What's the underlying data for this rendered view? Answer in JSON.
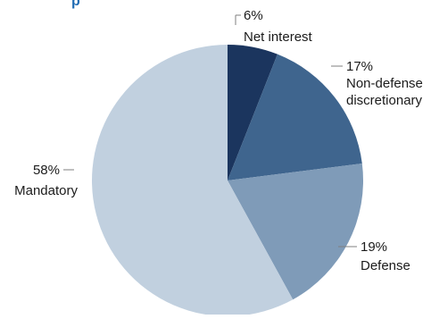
{
  "chart_data": {
    "type": "pie",
    "title": "p",
    "slices": [
      {
        "label": "Net interest",
        "value": 6,
        "value_label": "6%",
        "color": "#1b355e"
      },
      {
        "label": "Non-defense discretionary",
        "label_lines": [
          "Non-defense",
          "discretionary"
        ],
        "value": 17,
        "value_label": "17%",
        "color": "#3f658e"
      },
      {
        "label": "Defense",
        "value": 19,
        "value_label": "19%",
        "color": "#7f9bb8"
      },
      {
        "label": "Mandatory",
        "value": 58,
        "value_label": "58%",
        "color": "#c1d0df"
      }
    ]
  }
}
